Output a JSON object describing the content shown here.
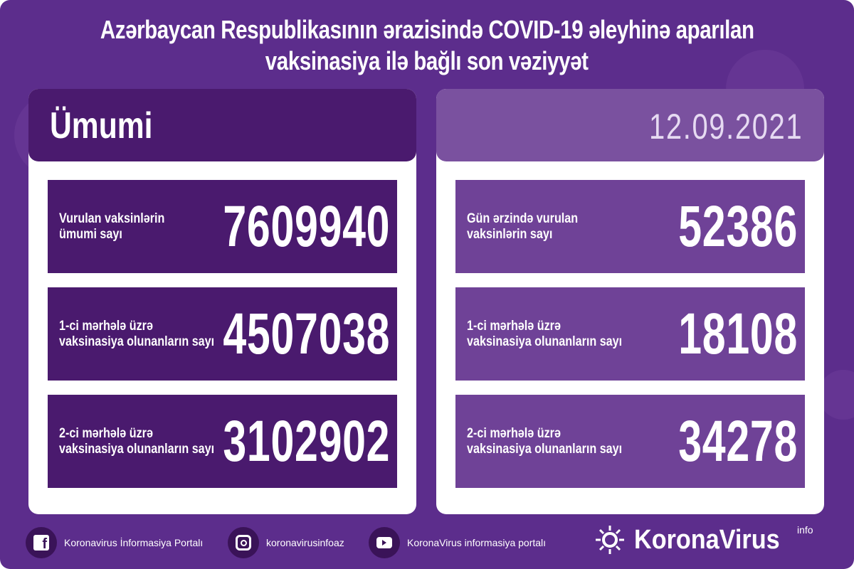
{
  "title": {
    "line1": "Azərbaycan Respublikasının ərazisində COVID-19 əleyhinə aparılan",
    "line2": "vaksinasiya ilə bağlı son vəziyyət"
  },
  "left": {
    "header": "Ümumi",
    "rows": [
      {
        "label": "Vurulan vaksinlərin\nümumi sayı",
        "value": "7609940"
      },
      {
        "label": "1-ci mərhələ üzrə\nvaksinasiya olunanların sayı",
        "value": "4507038"
      },
      {
        "label": "2-ci mərhələ üzrə\nvaksinasiya olunanların sayı",
        "value": "3102902"
      }
    ]
  },
  "right": {
    "date": "12.09.2021",
    "rows": [
      {
        "label": "Gün ərzində vurulan\nvaksinlərin sayı",
        "value": "52386"
      },
      {
        "label": "1-ci mərhələ üzrə\nvaksinasiya olunanların sayı",
        "value": "18108"
      },
      {
        "label": "2-ci mərhələ üzrə\nvaksinasiya olunanların sayı",
        "value": "34278"
      }
    ]
  },
  "footer": {
    "facebook": "Koronavirus İnformasiya Portalı",
    "instagram": "koronavirusinfoaz",
    "youtube": "KoronaVirus informasiya portalı",
    "brand": "KoronaVirus",
    "brand_sup": "info"
  },
  "colors": {
    "background": "#5c2d8c",
    "dark_row": "#4a1a6e",
    "light_row": "#6f4297"
  }
}
